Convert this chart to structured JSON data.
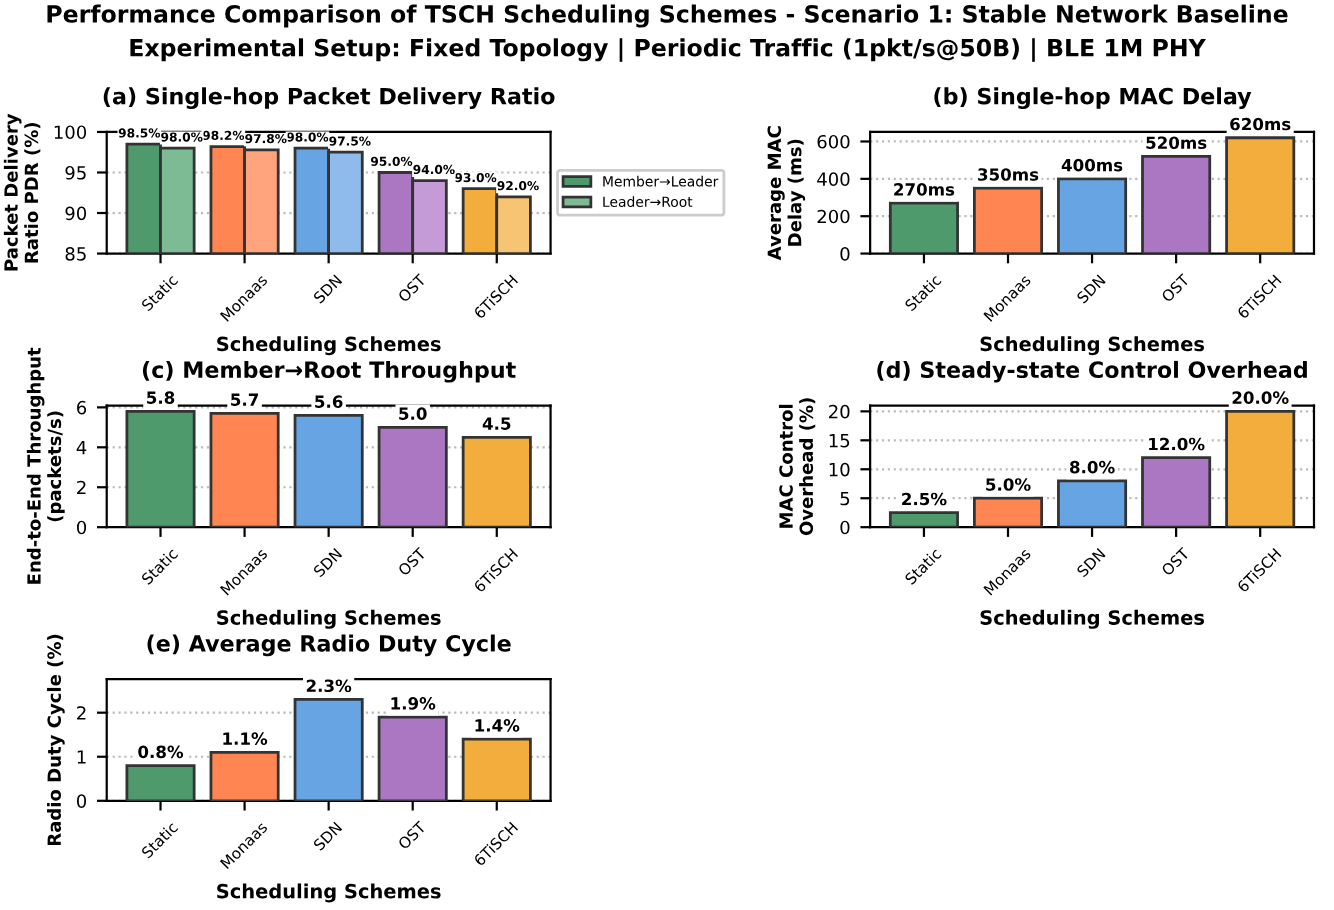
{
  "chart_data": [
    {
      "type": "bar",
      "title": "(a) Single-hop Packet Delivery Ratio",
      "annotations": [
        "Performance Comparison of TSCH Scheduling Schemes - Scenario 1: Stable Network Baseline",
        "Experimental Setup: Fixed Topology | Periodic Traffic (1pkt/s@50B) | BLE 1M PHY"
      ],
      "xlabel": "Scheduling Schemes",
      "ylabel": "Packet Delivery Ratio PDR (%)",
      "categories": [
        "Static",
        "Monaas",
        "SDN",
        "OST",
        "6TiSCH"
      ],
      "ylim": [
        85,
        100
      ],
      "yticks": [
        85,
        90,
        95,
        100
      ],
      "grid": "y",
      "legend": "right",
      "series": [
        {
          "name": "Member→Leader",
          "colors": [
            "#4f9a6c",
            "#ff8552",
            "#67a4e3",
            "#ab77c2",
            "#f2ad3d"
          ],
          "values": [
            98.5,
            98.2,
            98.0,
            95.0,
            93.0
          ],
          "value_labels": [
            "98.5%",
            "98.2%",
            "98.0%",
            "95.0%",
            "93.0%"
          ]
        },
        {
          "name": "Leader→Root",
          "colors": [
            "#7dbb95",
            "#ffa47c",
            "#8fbbec",
            "#c49bd6",
            "#f7c473"
          ],
          "values": [
            98.0,
            97.8,
            97.5,
            94.0,
            92.0
          ],
          "value_labels": [
            "98.0%",
            "97.8%",
            "97.5%",
            "94.0%",
            "92.0%"
          ]
        }
      ]
    },
    {
      "type": "bar",
      "title": "(b) Single-hop MAC Delay",
      "xlabel": "Scheduling Schemes",
      "ylabel": "Average MAC Delay (ms)",
      "categories": [
        "Static",
        "Monaas",
        "SDN",
        "OST",
        "6TiSCH"
      ],
      "ylim": [
        0,
        651
      ],
      "yticks": [
        0,
        200,
        400,
        600
      ],
      "grid": "y",
      "series": [
        {
          "colors": [
            "#4f9a6c",
            "#ff8552",
            "#67a4e3",
            "#ab77c2",
            "#f2ad3d"
          ],
          "values": [
            270,
            350,
            400,
            520,
            620
          ],
          "value_labels": [
            "270ms",
            "350ms",
            "400ms",
            "520ms",
            "620ms"
          ]
        }
      ]
    },
    {
      "type": "bar",
      "title": "(c) Member→Root Throughput",
      "xlabel": "Scheduling Schemes",
      "ylabel": "End-to-End Throughput (packets/s)",
      "categories": [
        "Static",
        "Monaas",
        "SDN",
        "OST",
        "6TiSCH"
      ],
      "ylim": [
        0,
        6.09
      ],
      "yticks": [
        0,
        2,
        4,
        6
      ],
      "grid": "y",
      "series": [
        {
          "colors": [
            "#4f9a6c",
            "#ff8552",
            "#67a4e3",
            "#ab77c2",
            "#f2ad3d"
          ],
          "values": [
            5.8,
            5.7,
            5.6,
            5.0,
            4.5
          ],
          "value_labels": [
            "5.8",
            "5.7",
            "5.6",
            "5.0",
            "4.5"
          ]
        }
      ]
    },
    {
      "type": "bar",
      "title": "(d) Steady-state Control Overhead",
      "xlabel": "Scheduling Schemes",
      "ylabel": "MAC Control Overhead (%)",
      "categories": [
        "Static",
        "Monaas",
        "SDN",
        "OST",
        "6TiSCH"
      ],
      "ylim": [
        0,
        21
      ],
      "yticks": [
        0,
        5,
        10,
        15,
        20
      ],
      "grid": "y",
      "series": [
        {
          "colors": [
            "#4f9a6c",
            "#ff8552",
            "#67a4e3",
            "#ab77c2",
            "#f2ad3d"
          ],
          "values": [
            2.5,
            5.0,
            8.0,
            12.0,
            20.0
          ],
          "value_labels": [
            "2.5%",
            "5.0%",
            "8.0%",
            "12.0%",
            "20.0%"
          ]
        }
      ]
    },
    {
      "type": "bar",
      "title": "(e) Average Radio Duty Cycle",
      "xlabel": "Scheduling Schemes",
      "ylabel": "Radio Duty Cycle (%)",
      "categories": [
        "Static",
        "Monaas",
        "SDN",
        "OST",
        "6TiSCH"
      ],
      "ylim": [
        0,
        2.76
      ],
      "yticks": [
        0,
        1,
        2
      ],
      "grid": "y",
      "series": [
        {
          "colors": [
            "#4f9a6c",
            "#ff8552",
            "#67a4e3",
            "#ab77c2",
            "#f2ad3d"
          ],
          "values": [
            0.8,
            1.1,
            2.3,
            1.9,
            1.4
          ],
          "value_labels": [
            "0.8%",
            "1.1%",
            "2.3%",
            "1.9%",
            "1.4%"
          ]
        }
      ]
    }
  ]
}
